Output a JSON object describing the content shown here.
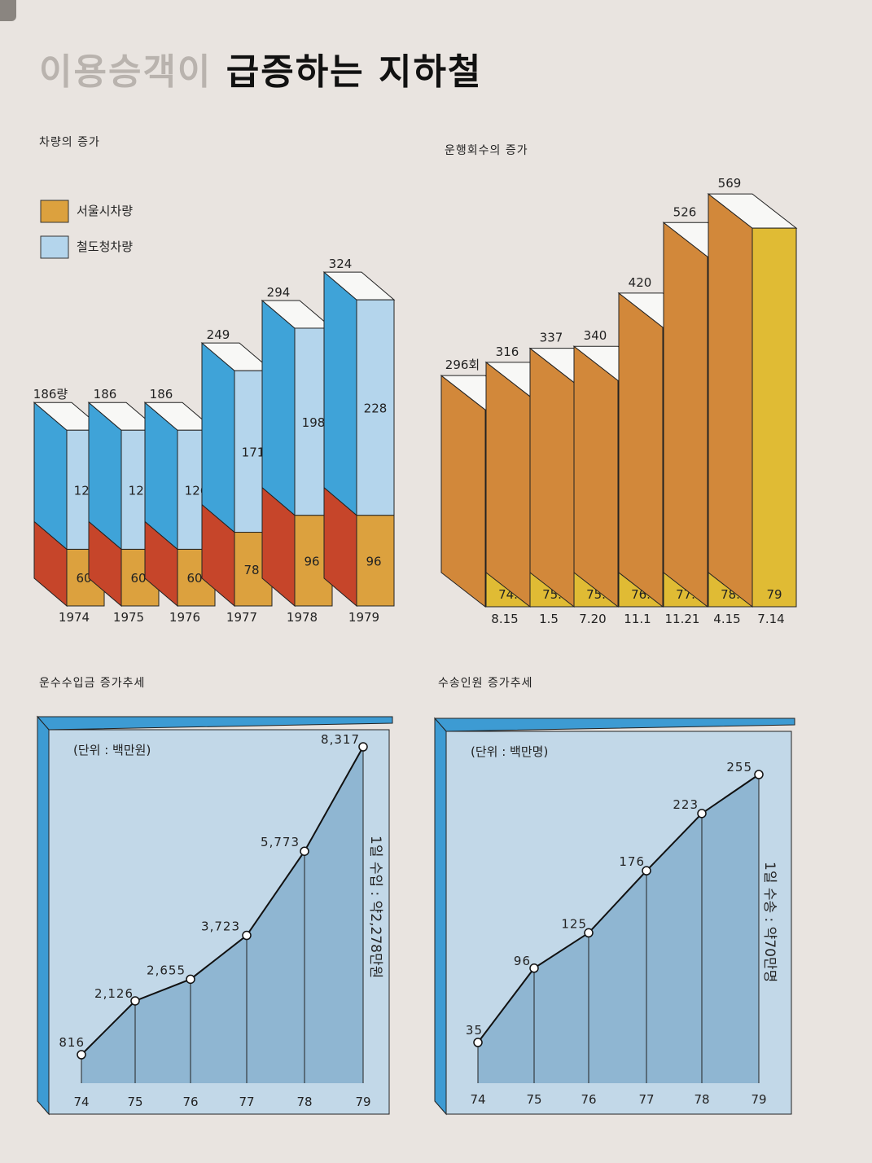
{
  "title": {
    "part1": "이용승객이",
    "part2": "급증하는 지하철"
  },
  "chart_data": [
    {
      "type": "bar",
      "title": "차량의 증가",
      "categories": [
        "1974",
        "1975",
        "1976",
        "1977",
        "1978",
        "1979"
      ],
      "series": [
        {
          "name": "서울시차량",
          "values": [
            60,
            60,
            60,
            78,
            96,
            96
          ]
        },
        {
          "name": "철도청차량",
          "values": [
            126,
            126,
            126,
            171,
            198,
            228
          ]
        }
      ],
      "totals": [
        186,
        186,
        186,
        249,
        294,
        324
      ],
      "total_labels": [
        "186량",
        "186",
        "186",
        "249",
        "294",
        "324"
      ],
      "colors": {
        "seoul": "#dca13e",
        "seoul_side": "#c6452a",
        "rail": "#b4d5ec",
        "rail_side": "#3fa3d8"
      },
      "legend": "top-left"
    },
    {
      "type": "bar",
      "title": "운행회수의 증가",
      "categories": [
        "74. 8.15",
        "75. 1.5",
        "75. 7.20",
        "76. 11.1",
        "77. 11.21",
        "78. 4.15",
        "79 7.14"
      ],
      "cat_top": [
        "74.",
        "75.",
        "75.",
        "76.",
        "77.",
        "78.",
        "79"
      ],
      "cat_bottom": [
        "8.15",
        "1.5",
        "7.20",
        "11.1",
        "11.21",
        "4.15",
        "7.14"
      ],
      "values": [
        296,
        316,
        337,
        340,
        420,
        526,
        569
      ],
      "value_labels": [
        "296회",
        "316",
        "337",
        "340",
        "420",
        "526",
        "569"
      ],
      "colors": {
        "front": "#e0bb34",
        "side": "#d2883a"
      }
    },
    {
      "type": "area",
      "title": "운수수입금 증가추세",
      "unit": "(단위 : 백만원)",
      "x": [
        "74",
        "75",
        "76",
        "77",
        "78",
        "79"
      ],
      "values": [
        816,
        2126,
        2655,
        3723,
        5773,
        8317
      ],
      "value_labels": [
        "816",
        "2,126",
        "2,655",
        "3,723",
        "5,773",
        "8,317"
      ],
      "note": "1일 수입 : 약2,278만원"
    },
    {
      "type": "area",
      "title": "수송인원 증가추세",
      "unit": "(단위 : 백만명)",
      "x": [
        "74",
        "75",
        "76",
        "77",
        "78",
        "79"
      ],
      "values": [
        35,
        96,
        125,
        176,
        223,
        255
      ],
      "value_labels": [
        "35",
        "96",
        "125",
        "176",
        "223",
        "255"
      ],
      "note": "1일 수송 : 약70만명"
    }
  ]
}
